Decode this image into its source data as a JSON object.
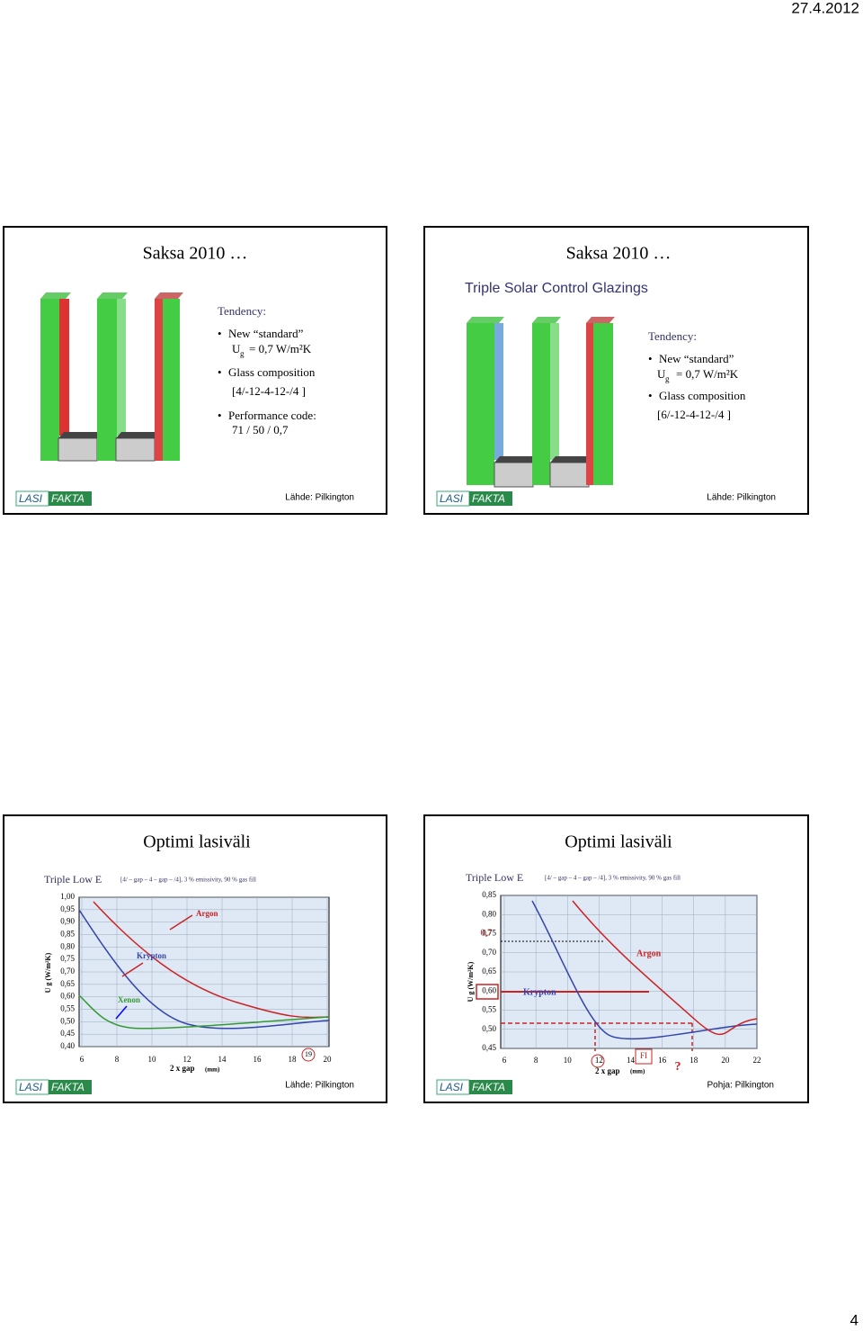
{
  "header": {
    "date": "27.4.2012"
  },
  "slides": [
    {
      "title": "Saksa 2010 …",
      "tendency": "Tendency:",
      "bullets": [
        "New “standard”",
        "Glass composition",
        "Performance code:"
      ],
      "u": "U",
      "g": "g",
      "uvalue": "= 0,7 W/m²K",
      "composition": "[4/-12-4-12-/4 ]",
      "code": "71 / 50 / 0,7",
      "logo": [
        "LASI",
        "FAKTA"
      ],
      "source": "Lähde: Pilkington"
    },
    {
      "title": "Saksa 2010 …",
      "subtitle": "Triple Solar Control Glazings",
      "tendency": "Tendency:",
      "bullets": [
        "New “standard”",
        "Glass composition"
      ],
      "u": "U",
      "g": "g",
      "uvalue": "= 0,7 W/m²K",
      "composition": "[6/-12-4-12-/4 ]",
      "logo": [
        "LASI",
        "FAKTA"
      ],
      "source": "Lähde: Pilkington"
    },
    {
      "title": "Optimi lasiväli",
      "chart": {
        "heading": "Triple Low E",
        "spec": "[4/ – gap – 4 – gap – /4],  3 % emissivity,  90 % gas fill",
        "ylabel": "U g  (W/m²K)",
        "xlabel": "2 x gap",
        "xunit": "(mm)",
        "yticks": [
          "1,00",
          "0,95",
          "0,90",
          "0,85",
          "0,80",
          "0,75",
          "0,70",
          "0,65",
          "0,60",
          "0,55",
          "0,50",
          "0,45",
          "0,40"
        ],
        "xticks": [
          "6",
          "8",
          "10",
          "12",
          "14",
          "16",
          "18",
          "20"
        ],
        "curves": [
          "Argon",
          "Krypton",
          "Xenon"
        ],
        "marker": "19"
      },
      "logo": [
        "LASI",
        "FAKTA"
      ],
      "source": "Lähde: Pilkington"
    },
    {
      "title": "Optimi lasiväli",
      "chart": {
        "heading": "Triple Low E",
        "spec": "[4/ – gap – 4 – gap – /4],  3 % emissivity,  90 % gas fill",
        "ylabel": "U g  (W/m²K)",
        "xlabel": "2 x gap",
        "xunit": "(mm)",
        "yticks": [
          "0,85",
          "0,80",
          "0,75",
          "0,70",
          "0,65",
          "0,60",
          "0,55",
          "0,50",
          "0,45"
        ],
        "xticks": [
          "6",
          "8",
          "10",
          "12",
          "14",
          "16",
          "18",
          "20",
          "22"
        ],
        "highlight": "0,7",
        "curves": [
          "Argon",
          "Krypton"
        ],
        "markers": [
          "FI",
          "?"
        ]
      },
      "logo": [
        "LASI",
        "FAKTA"
      ],
      "source": "Pohja: Pilkington"
    }
  ],
  "footer": {
    "page": "4"
  }
}
